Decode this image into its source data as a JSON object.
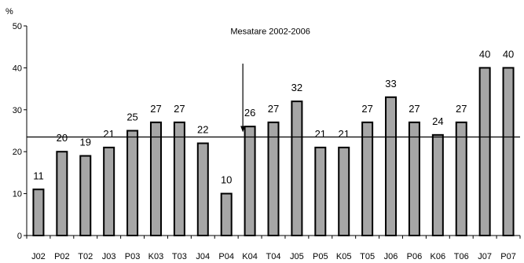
{
  "chart_data": {
    "type": "bar",
    "unit_label": "%",
    "categories": [
      "J02",
      "P02",
      "T02",
      "J03",
      "P03",
      "K03",
      "T03",
      "J04",
      "P04",
      "K04",
      "T04",
      "J05",
      "P05",
      "K05",
      "T05",
      "J06",
      "P06",
      "K06",
      "T06",
      "J07",
      "P07"
    ],
    "values": [
      11,
      20,
      19,
      21,
      25,
      27,
      27,
      22,
      10,
      26,
      27,
      32,
      21,
      21,
      27,
      33,
      27,
      24,
      27,
      40,
      40
    ],
    "data_labels": [
      "11",
      "20",
      "19",
      "21",
      "25",
      "27",
      "27",
      "22",
      "10",
      "26",
      "27",
      "32",
      "21",
      "21",
      "27",
      "33",
      "27",
      "24",
      "27",
      "40",
      "40"
    ],
    "ylim": [
      0,
      50
    ],
    "yticks": [
      0,
      10,
      20,
      30,
      40,
      50
    ],
    "reference_line": {
      "label": "Mesatare 2002-2006",
      "value": 23.5,
      "arrow_category": "K04"
    },
    "bar_color": "#a6a6a6",
    "bar_edge_color": "#000000",
    "grid": false,
    "legend": "none"
  }
}
